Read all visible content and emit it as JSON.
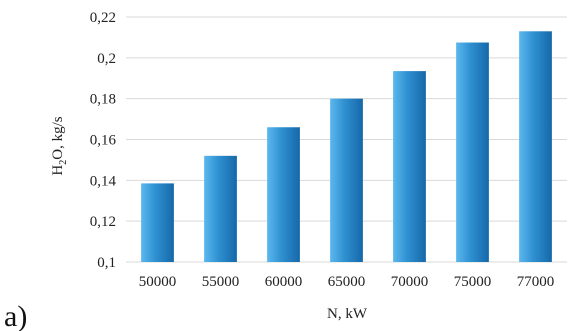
{
  "panel_label": "a)",
  "chart_data": {
    "type": "bar",
    "categories": [
      "50000",
      "55000",
      "60000",
      "65000",
      "70000",
      "75000",
      "77000"
    ],
    "values": [
      0.1385,
      0.152,
      0.166,
      0.18,
      0.1935,
      0.2075,
      0.213
    ],
    "xlabel": "N, kW",
    "ylabel_parts": {
      "pre": "H",
      "sub": "2",
      "post": "O, kg/s"
    },
    "ylim": [
      0.1,
      0.22
    ],
    "yticks": [
      0.1,
      0.12,
      0.14,
      0.16,
      0.18,
      0.2,
      0.22
    ],
    "ytick_labels": [
      "0,1",
      "0,12",
      "0,14",
      "0,16",
      "0,18",
      "0,2",
      "0,22"
    ],
    "grid": true,
    "bar_color": "#2e8fd0",
    "bar_color_light": "#5bb8ee",
    "bar_color_dark": "#1668a8"
  }
}
